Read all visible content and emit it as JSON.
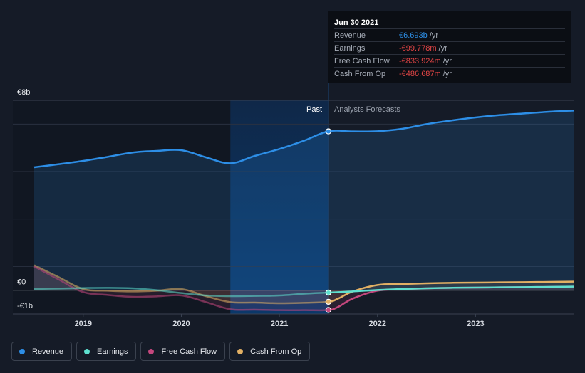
{
  "tooltip": {
    "date": "Jun 30 2021",
    "rows": [
      {
        "label": "Revenue",
        "value": "€6.693b",
        "unit": "/yr",
        "color": "#2d8ee6"
      },
      {
        "label": "Earnings",
        "value": "-€99.778m",
        "unit": "/yr",
        "color": "#e64646"
      },
      {
        "label": "Free Cash Flow",
        "value": "-€833.924m",
        "unit": "/yr",
        "color": "#e64646"
      },
      {
        "label": "Cash From Op",
        "value": "-€486.687m",
        "unit": "/yr",
        "color": "#e64646"
      }
    ]
  },
  "legend": [
    {
      "label": "Revenue",
      "color": "#2d8ee6"
    },
    {
      "label": "Earnings",
      "color": "#5ee0cf"
    },
    {
      "label": "Free Cash Flow",
      "color": "#c4477d"
    },
    {
      "label": "Cash From Op",
      "color": "#e2b064"
    }
  ],
  "chart_data": {
    "type": "line",
    "title": "",
    "xlabel": "",
    "ylabel": "",
    "ylim": [
      -1,
      8
    ],
    "yticks": [
      {
        "value": 8,
        "label": "€8b"
      },
      {
        "value": 0,
        "label": "€0"
      },
      {
        "value": -1,
        "label": "-€1b"
      }
    ],
    "xticks": [
      "2019",
      "2020",
      "2021",
      "2022",
      "2023"
    ],
    "x_range": [
      2018.5,
      2024.0
    ],
    "past_label": "Past",
    "forecast_label": "Analysts Forecasts",
    "highlight_start": 2020.5,
    "current_x": 2021.5,
    "series": [
      {
        "name": "Revenue",
        "color": "#2d8ee6",
        "fill": true,
        "x": [
          2018.5,
          2018.75,
          2019.0,
          2019.25,
          2019.5,
          2019.75,
          2020.0,
          2020.25,
          2020.5,
          2020.75,
          2021.0,
          2021.25,
          2021.5,
          2021.75,
          2022.0,
          2022.25,
          2022.5,
          2022.75,
          2023.0,
          2023.25,
          2023.5,
          2023.75,
          2024.0
        ],
        "values": [
          5.18,
          5.31,
          5.45,
          5.62,
          5.8,
          5.87,
          5.9,
          5.6,
          5.35,
          5.66,
          5.95,
          6.3,
          6.693,
          6.69,
          6.7,
          6.8,
          7.0,
          7.15,
          7.28,
          7.38,
          7.45,
          7.52,
          7.57
        ]
      },
      {
        "name": "Earnings",
        "color": "#5ee0cf",
        "fill": false,
        "x": [
          2018.5,
          2018.75,
          2019.0,
          2019.25,
          2019.5,
          2019.75,
          2020.0,
          2020.25,
          2020.5,
          2020.75,
          2021.0,
          2021.25,
          2021.5,
          2021.75,
          2022.0,
          2022.25,
          2022.5,
          2022.75,
          2023.0,
          2023.25,
          2023.5,
          2023.75,
          2024.0
        ],
        "values": [
          0.05,
          0.07,
          0.09,
          0.1,
          0.08,
          0.0,
          -0.12,
          -0.22,
          -0.25,
          -0.24,
          -0.22,
          -0.15,
          -0.1,
          -0.05,
          0.01,
          0.05,
          0.08,
          0.1,
          0.11,
          0.12,
          0.13,
          0.14,
          0.15
        ]
      },
      {
        "name": "Free Cash Flow",
        "color": "#c4477d",
        "fill": true,
        "x": [
          2018.5,
          2018.75,
          2019.0,
          2019.25,
          2019.5,
          2019.75,
          2020.0,
          2020.25,
          2020.5,
          2020.75,
          2021.0,
          2021.25,
          2021.5,
          2021.6,
          2021.75,
          2022.0,
          2022.25,
          2022.5,
          2022.75,
          2023.0,
          2023.25,
          2023.5,
          2023.75,
          2024.0
        ],
        "values": [
          1.0,
          0.45,
          -0.08,
          -0.2,
          -0.28,
          -0.26,
          -0.22,
          -0.5,
          -0.8,
          -0.82,
          -0.84,
          -0.84,
          -0.834,
          -0.7,
          -0.35,
          -0.02,
          0.04,
          0.08,
          0.1,
          0.11,
          0.12,
          0.13,
          0.14,
          0.15
        ]
      },
      {
        "name": "Cash From Op",
        "color": "#e2b064",
        "fill": true,
        "x": [
          2018.5,
          2018.75,
          2019.0,
          2019.25,
          2019.5,
          2019.75,
          2020.0,
          2020.25,
          2020.5,
          2020.75,
          2021.0,
          2021.25,
          2021.5,
          2021.6,
          2021.75,
          2022.0,
          2022.25,
          2022.5,
          2022.75,
          2023.0,
          2023.25,
          2023.5,
          2023.75,
          2024.0
        ],
        "values": [
          1.05,
          0.55,
          0.05,
          -0.02,
          -0.05,
          -0.02,
          0.05,
          -0.25,
          -0.5,
          -0.52,
          -0.55,
          -0.53,
          -0.487,
          -0.35,
          -0.05,
          0.22,
          0.26,
          0.29,
          0.31,
          0.32,
          0.33,
          0.34,
          0.35,
          0.36
        ]
      }
    ]
  }
}
